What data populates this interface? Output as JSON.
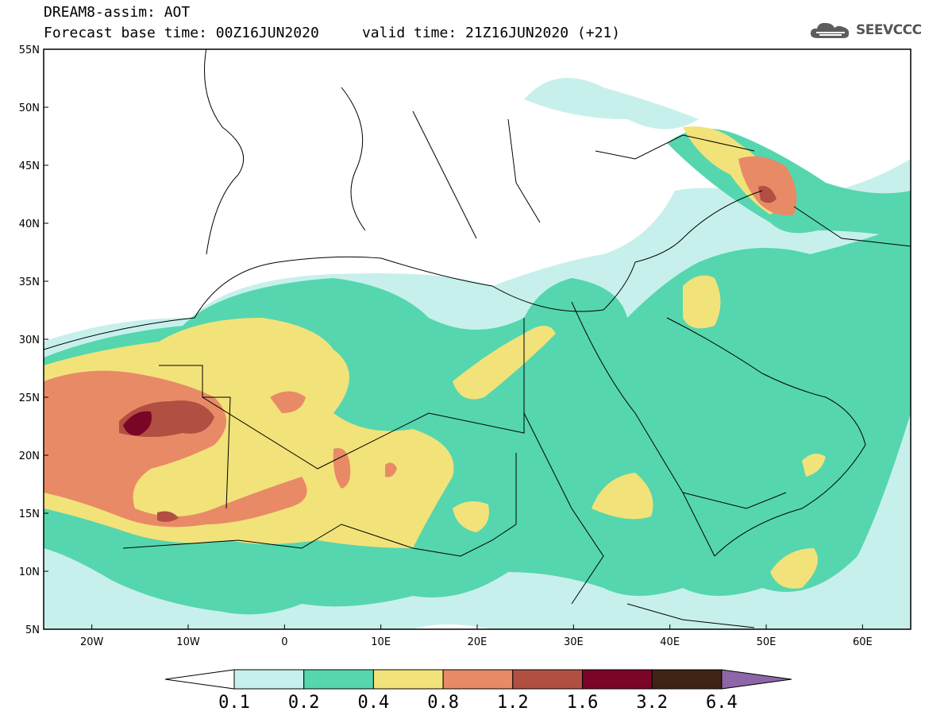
{
  "header": {
    "title": "DREAM8-assim: AOT",
    "subtitle": "Forecast base time: 00Z16JUN2020     valid time: 21Z16JUN2020 (+21)"
  },
  "logo": {
    "text": "SEEVCCC",
    "icon": "cloud-icon"
  },
  "map": {
    "variable": "Aerosol Optical Thickness",
    "lon_range": [
      -25,
      65
    ],
    "lat_range": [
      5,
      55
    ],
    "lat_ticks": [
      "55N",
      "50N",
      "45N",
      "40N",
      "35N",
      "30N",
      "25N",
      "20N",
      "15N",
      "10N",
      "5N"
    ],
    "lon_ticks": [
      "20W",
      "10W",
      "0",
      "10E",
      "20E",
      "30E",
      "40E",
      "50E",
      "60E"
    ]
  },
  "colorbar": {
    "levels": [
      "0.1",
      "0.2",
      "0.4",
      "0.8",
      "1.2",
      "1.6",
      "3.2",
      "6.4"
    ],
    "colors": [
      "#ffffff",
      "#c7f0ec",
      "#55d6ae",
      "#f2e27a",
      "#e98a66",
      "#b14f42",
      "#7b0527",
      "#3f2416",
      "#8e66a8"
    ]
  }
}
